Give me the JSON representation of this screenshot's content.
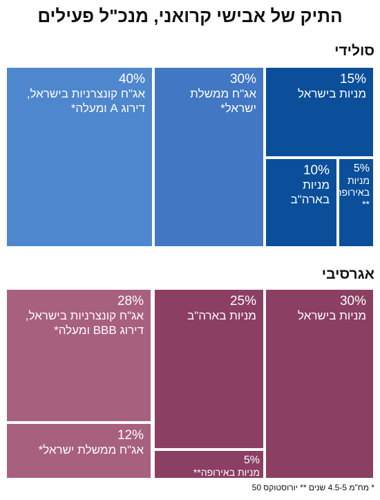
{
  "title": "התיק של אבישי קרואני, מנכ\"ל פעילים",
  "footnote": "* מח\"מ 4.5-5 שנים ** יורוסטוקס 50",
  "colors": {
    "solid": "#0b4f9a",
    "aggressive": "#8a3f63"
  },
  "chart_data": [
    {
      "type": "treemap",
      "title": "סולידי",
      "units": "%",
      "categories": [
        "אג\"ח קונצרניות בישראל, דירוג A ומעלה*",
        "אג\"ח ממשלת ישראל*",
        "מניות בישראל",
        "מניות בארה\"ב",
        "מניות באירופה**"
      ],
      "values": [
        40,
        30,
        15,
        10,
        5
      ],
      "tiles": [
        {
          "pct": "40%",
          "label": "אג\"ח קונצרניות בישראל,\nדירוג A ומעלה*",
          "color": "#4f87ce"
        },
        {
          "pct": "30%",
          "label": "אג\"ח ממשלת ישראל*",
          "color": "#4277c3"
        },
        {
          "pct": "15%",
          "label": "מניות בישראל",
          "color": "#0b4f9a"
        },
        {
          "pct": "10%",
          "label": "מניות בארה\"ב",
          "color": "#0b4f9a"
        },
        {
          "pct": "5%",
          "label": "מניות\nבאירופה\n**",
          "color": "#0b4f9a"
        }
      ]
    },
    {
      "type": "treemap",
      "title": "אגרסיבי",
      "units": "%",
      "categories": [
        "אג\"ח קונצרניות בישראל, דירוג BBB ומעלה*",
        "מניות בארה\"ב",
        "מניות בישראל",
        "אג\"ח ממשלת ישראל*",
        "מניות באירופה**"
      ],
      "values": [
        28,
        25,
        30,
        12,
        5
      ],
      "tiles": [
        {
          "pct": "28%",
          "label": "אג\"ח קונצרניות בישראל,\nדירוג BBB ומעלה*",
          "color": "#a8607f"
        },
        {
          "pct": "25%",
          "label": "מניות בארה\"ב",
          "color": "#8a3f63"
        },
        {
          "pct": "30%",
          "label": "מניות בישראל",
          "color": "#8a3f63"
        },
        {
          "pct": "12%",
          "label": "אג\"ח ממשלת ישראל*",
          "color": "#a8607f"
        },
        {
          "pct": "5%",
          "label": "מניות באירופה**",
          "color": "#8a3f63"
        }
      ]
    }
  ]
}
